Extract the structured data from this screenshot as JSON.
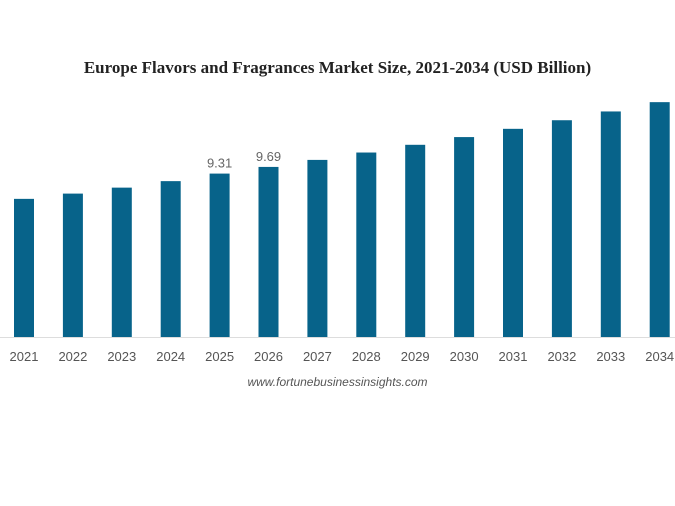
{
  "chart_data": {
    "type": "bar",
    "title": "Europe Flavors and Fragrances Market Size, 2021-2034 (USD Billion)",
    "categories": [
      "2021",
      "2022",
      "2023",
      "2024",
      "2025",
      "2026",
      "2027",
      "2028",
      "2029",
      "2030",
      "2031",
      "2032",
      "2033",
      "2034"
    ],
    "values": [
      7.87,
      8.17,
      8.51,
      8.88,
      9.31,
      9.69,
      10.09,
      10.51,
      10.95,
      11.39,
      11.86,
      12.35,
      12.85,
      13.38
    ],
    "data_labels": {
      "2025": "9.31",
      "2026": "9.69"
    },
    "xlabel": "",
    "ylabel": "",
    "ylim": [
      0,
      19.2
    ],
    "grid": false,
    "bar_color": "#07638a",
    "source": "www.fortunebusinessinsights.com"
  }
}
